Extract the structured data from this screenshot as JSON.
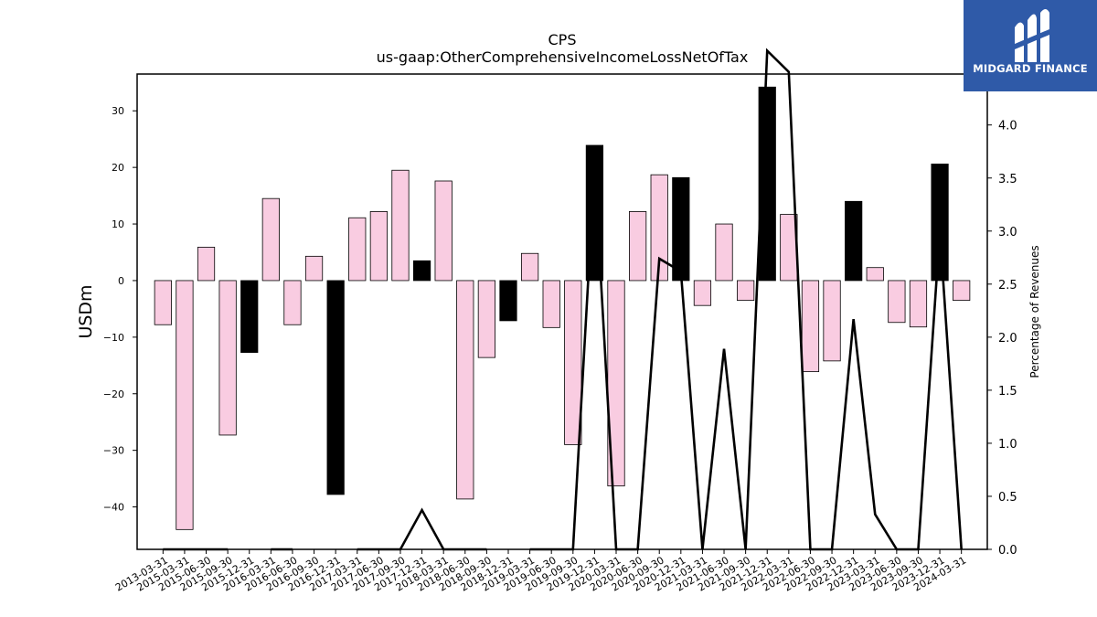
{
  "chart_data": {
    "type": "bar",
    "title": "CPS",
    "subtitle": "us-gaap:OtherComprehensiveIncomeLossNetOfTax",
    "ylabel": "USDm",
    "y2label": "Percentage of Revenues",
    "ylim": [
      -47.5,
      36.5
    ],
    "y2lim": [
      0.0,
      4.48
    ],
    "yticks": [
      30,
      20,
      10,
      0,
      -10,
      -20,
      -30,
      -40
    ],
    "y2ticks": [
      0.0,
      0.5,
      1.0,
      1.5,
      2.0,
      2.5,
      3.0,
      3.5,
      4.0
    ],
    "categories": [
      "2013-03-31",
      "2015-03-31",
      "2015-06-30",
      "2015-09-30",
      "2015-12-31",
      "2016-03-31",
      "2016-06-30",
      "2016-09-30",
      "2016-12-31",
      "2017-03-31",
      "2017-06-30",
      "2017-09-30",
      "2017-12-31",
      "2018-03-31",
      "2018-06-30",
      "2018-09-30",
      "2018-12-31",
      "2019-03-31",
      "2019-06-30",
      "2019-09-30",
      "2019-12-31",
      "2020-03-31",
      "2020-06-30",
      "2020-09-30",
      "2020-12-31",
      "2021-03-31",
      "2021-06-30",
      "2021-09-30",
      "2021-12-31",
      "2022-03-31",
      "2022-06-30",
      "2022-09-30",
      "2022-12-31",
      "2023-03-31",
      "2023-06-30",
      "2023-09-30",
      "2023-12-31",
      "2024-03-31"
    ],
    "series": [
      {
        "values": [
          -7.8,
          -44,
          5.9,
          -27.3,
          -12.7,
          14.5,
          -7.8,
          4.3,
          -37.8,
          11.1,
          12.2,
          19.5,
          3.5,
          17.6,
          -38.6,
          -13.6,
          -7.1,
          4.8,
          -8.3,
          -29,
          23.9,
          -36.3,
          12.2,
          18.7,
          18.2,
          -4.4,
          10,
          -3.5,
          34.2,
          11.7,
          -16.1,
          -14.2,
          14,
          2.3,
          -7.4,
          -8.2,
          20.6,
          -3.5
        ],
        "colors": [
          "#f9cce1",
          "#f9cce1",
          "#f9cce1",
          "#f9cce1",
          "#000000",
          "#f9cce1",
          "#f9cce1",
          "#f9cce1",
          "#000000",
          "#f9cce1",
          "#f9cce1",
          "#f9cce1",
          "#000000",
          "#f9cce1",
          "#f9cce1",
          "#f9cce1",
          "#000000",
          "#f9cce1",
          "#f9cce1",
          "#f9cce1",
          "#000000",
          "#f9cce1",
          "#f9cce1",
          "#f9cce1",
          "#000000",
          "#f9cce1",
          "#f9cce1",
          "#f9cce1",
          "#000000",
          "#f9cce1",
          "#f9cce1",
          "#f9cce1",
          "#000000",
          "#f9cce1",
          "#f9cce1",
          "#f9cce1",
          "#000000",
          "#f9cce1"
        ]
      }
    ],
    "line_series": {
      "axis": "right",
      "color": "#000000",
      "values": [
        0,
        0,
        0,
        0,
        null,
        0,
        0,
        null,
        null,
        0,
        0,
        0,
        0.37,
        0,
        0,
        0,
        null,
        0,
        0,
        0,
        3.6,
        0,
        0,
        2.74,
        2.62,
        0,
        1.89,
        0,
        4.7,
        4.5,
        0,
        0,
        2.17,
        0.33,
        0,
        0,
        3.0,
        0
      ]
    },
    "colors": {
      "positive_bar": "#f9cce1",
      "annual_bar": "#000000",
      "line": "#000000"
    }
  },
  "logo": {
    "text": "MIDGARD FINANCE",
    "icon": "midgard-logo-icon",
    "background": "#2f5aa8"
  }
}
